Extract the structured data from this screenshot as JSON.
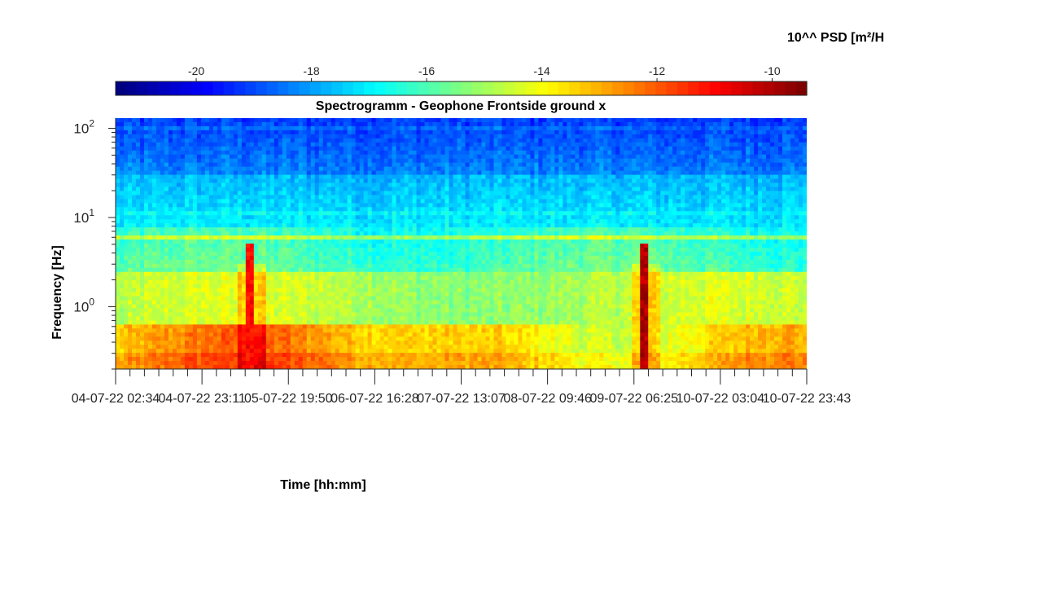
{
  "chart_data": {
    "type": "heatmap",
    "title": "Spectrogramm - Geophone Frontside ground x",
    "xlabel": "Time [hh:mm]",
    "ylabel": "Frequency [Hz]",
    "colorbar": {
      "label": "10^^ PSD [m²/H",
      "colormap": "jet",
      "range": [
        -21.4,
        -9.4
      ],
      "ticks": [
        -20,
        -18,
        -16,
        -14,
        -12,
        -10
      ],
      "tick_labels": [
        "-20",
        "-18",
        "-16",
        "-14",
        "-12",
        "-10"
      ],
      "placement": "top"
    },
    "y_axis": {
      "scale": "log",
      "range": [
        0.2,
        130
      ],
      "decade_ticks": [
        1,
        10,
        100
      ],
      "decade_tick_labels": [
        {
          "base": "10",
          "exp": "0"
        },
        {
          "base": "10",
          "exp": "1"
        },
        {
          "base": "10",
          "exp": "2"
        }
      ]
    },
    "x_axis": {
      "range": [
        "04-07-22 02:34",
        "10-07-22 23:43"
      ],
      "tick_labels": [
        "04-07-22 02:34",
        "04-07-22 23:11",
        "05-07-22 19:50",
        "06-07-22 16:28",
        "07-07-22 13:07",
        "08-07-22 09:46",
        "09-07-22 06:25",
        "10-07-22 03:04",
        "10-07-22 23:43"
      ],
      "minor_ticks_per_interval": 5
    },
    "features": {
      "persistent_line_hz": 6,
      "strong_band_hz": [
        0.2,
        0.65
      ],
      "bursts": [
        {
          "time_fraction": 0.196,
          "strength": -11
        },
        {
          "time_fraction": 0.767,
          "strength": -10
        }
      ]
    }
  }
}
